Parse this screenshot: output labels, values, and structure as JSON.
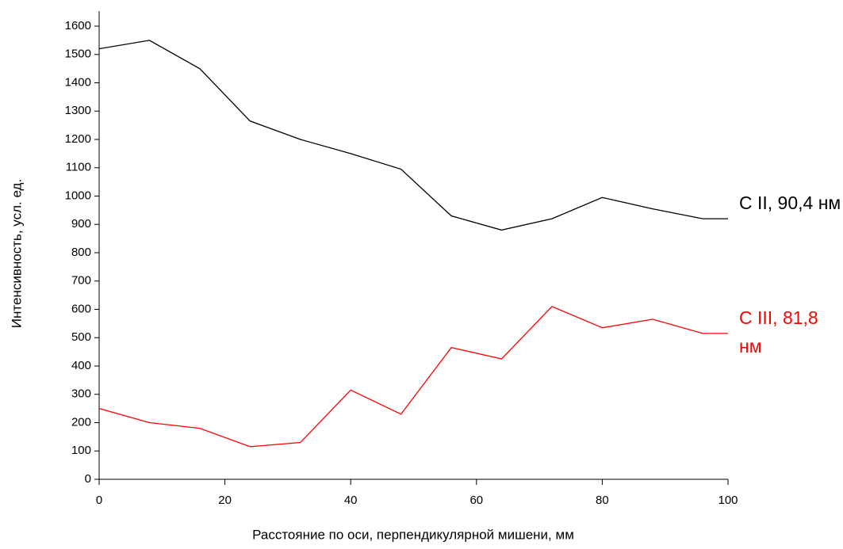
{
  "chart_data": {
    "type": "line",
    "xlabel": "Расстояние по оси, перпендикулярной мишени, мм",
    "ylabel": "Интенсивность, усл. ед.",
    "x": [
      0,
      8,
      16,
      24,
      32,
      40,
      48,
      56,
      64,
      72,
      80,
      88,
      96,
      100
    ],
    "series": [
      {
        "name": "C II, 90,4 нм",
        "color": "#000000",
        "values": [
          1520,
          1550,
          1450,
          1265,
          1200,
          1150,
          1095,
          930,
          880,
          920,
          995,
          955,
          920,
          920
        ]
      },
      {
        "name": "C III, 81,8 нм",
        "color": "#ff0000",
        "values": [
          250,
          200,
          180,
          115,
          130,
          315,
          230,
          465,
          425,
          610,
          535,
          565,
          515,
          515
        ]
      }
    ],
    "xlim": [
      0,
      100
    ],
    "xticks": [
      0,
      20,
      40,
      60,
      80,
      100
    ],
    "ylim": [
      0,
      1600
    ],
    "yticks": [
      0,
      100,
      200,
      300,
      400,
      500,
      600,
      700,
      800,
      900,
      1000,
      1100,
      1200,
      1300,
      1400,
      1500,
      1600
    ],
    "grid": false
  }
}
